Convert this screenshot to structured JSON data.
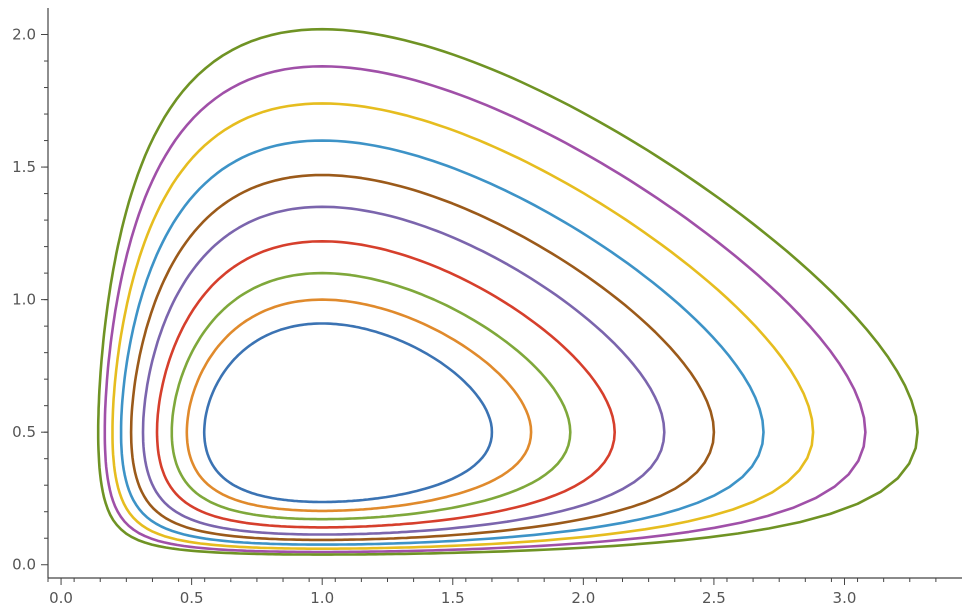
{
  "chart_data": {
    "type": "line",
    "title": "",
    "xlabel": "",
    "ylabel": "",
    "xlim": [
      -0.05,
      3.45
    ],
    "ylim": [
      -0.05,
      2.1
    ],
    "grid": false,
    "legend": "none",
    "x_ticks": [
      "0.0",
      "0.5",
      "1.0",
      "1.5",
      "2.0",
      "2.5",
      "3.0"
    ],
    "y_ticks": [
      "0.0",
      "0.5",
      "1.0",
      "1.5",
      "2.0"
    ],
    "series": [
      {
        "color": "#3b73b3",
        "center": [
          1.0,
          0.5
        ],
        "x_range": [
          0.55,
          1.65
        ],
        "y_range": [
          0.22,
          0.91
        ]
      },
      {
        "color": "#e08a2c",
        "center": [
          1.0,
          0.5
        ],
        "x_range": [
          0.47,
          1.8
        ],
        "y_range": [
          0.18,
          1.0
        ]
      },
      {
        "color": "#7fa83b",
        "center": [
          1.0,
          0.5
        ],
        "x_range": [
          0.41,
          1.95
        ],
        "y_range": [
          0.15,
          1.1
        ]
      },
      {
        "color": "#d63f2c",
        "center": [
          1.0,
          0.5
        ],
        "x_range": [
          0.35,
          2.12
        ],
        "y_range": [
          0.12,
          1.22
        ]
      },
      {
        "color": "#7b65ad",
        "center": [
          1.0,
          0.5
        ],
        "x_range": [
          0.3,
          2.31
        ],
        "y_range": [
          0.1,
          1.35
        ]
      },
      {
        "color": "#9b5a1a",
        "center": [
          1.0,
          0.5
        ],
        "x_range": [
          0.26,
          2.5
        ],
        "y_range": [
          0.09,
          1.47
        ]
      },
      {
        "color": "#3d93c7",
        "center": [
          1.0,
          0.5
        ],
        "x_range": [
          0.23,
          2.69
        ],
        "y_range": [
          0.07,
          1.6
        ]
      },
      {
        "color": "#e6bd1f",
        "center": [
          1.0,
          0.5
        ],
        "x_range": [
          0.2,
          2.88
        ],
        "y_range": [
          0.06,
          1.74
        ]
      },
      {
        "color": "#a050a8",
        "center": [
          1.0,
          0.5
        ],
        "x_range": [
          0.18,
          3.08
        ],
        "y_range": [
          0.05,
          1.88
        ]
      },
      {
        "color": "#6f9324",
        "center": [
          1.0,
          0.5
        ],
        "x_range": [
          0.15,
          3.28
        ],
        "y_range": [
          0.04,
          2.02
        ]
      }
    ]
  }
}
